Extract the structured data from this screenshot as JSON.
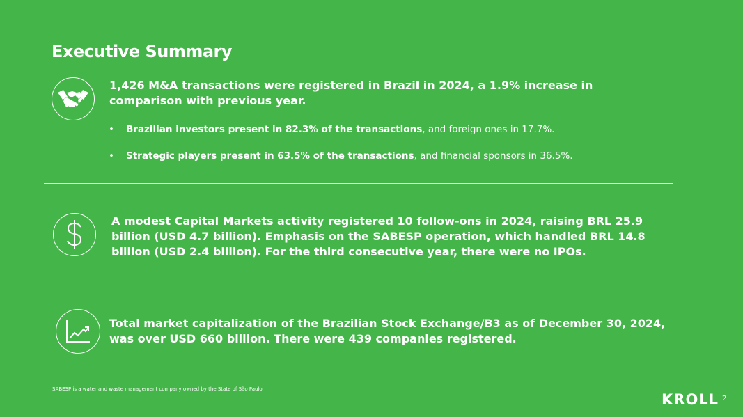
{
  "title": "Executive Summary",
  "sections": [
    {
      "icon": "handshake-icon",
      "headline": "1,426 M&A transactions were registered in Brazil in 2024, a 1.9% increase in comparison with previous year.",
      "bullets": [
        {
          "bold": "Brazilian investors present in 82.3% of the transactions",
          "rest": ", and foreign ones in 17.7%."
        },
        {
          "bold": "Strategic players present in 63.5% of the transactions",
          "rest": ", and financial sponsors in 36.5%."
        }
      ]
    },
    {
      "icon": "dollar-icon",
      "headline": "A modest Capital Markets activity registered 10 follow-ons in 2024, raising BRL 25.9 billion (USD 4.7 billion). Emphasis on the SABESP operation, which handled BRL 14.8 billion (USD 2.4 billion). For the third consecutive year, there were no IPOs."
    },
    {
      "icon": "growth-chart-icon",
      "headline": "Total market capitalization of the Brazilian Stock Exchange/B3 as of December 30, 2024, was over USD 660 billion. There were 439 companies registered."
    }
  ],
  "footnote": "SABESP is a water and waste management company owned by the State of São Paulo.",
  "logo": "KROLL",
  "page_number": "2",
  "colors": {
    "background": "#44b549",
    "text": "#ffffff"
  }
}
